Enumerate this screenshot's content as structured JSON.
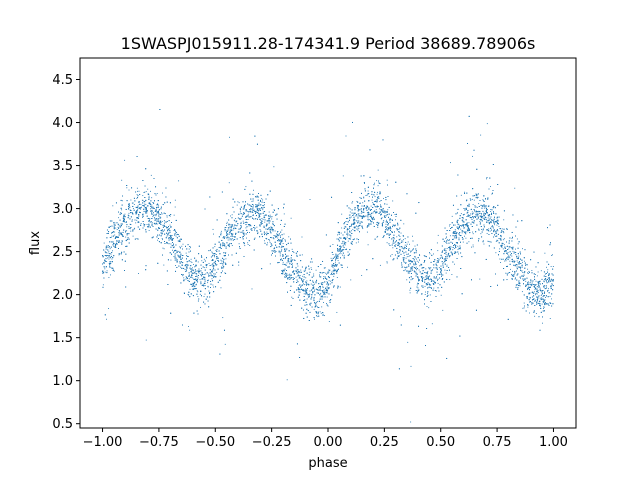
{
  "chart_data": {
    "type": "scatter",
    "title": "1SWASPJ015911.28-174341.9 Period 38689.78906s",
    "xlabel": "phase",
    "ylabel": "flux",
    "xlim": [
      -1.1,
      1.1
    ],
    "ylim": [
      0.45,
      4.75
    ],
    "x_ticks": [
      -1.0,
      -0.75,
      -0.5,
      -0.25,
      0.0,
      0.25,
      0.5,
      0.75,
      1.0
    ],
    "x_tick_labels": [
      "−1.00",
      "−0.75",
      "−0.50",
      "−0.25",
      "0.00",
      "0.25",
      "0.50",
      "0.75",
      "1.00"
    ],
    "y_ticks": [
      0.5,
      1.0,
      1.5,
      2.0,
      2.5,
      3.0,
      3.5,
      4.0,
      4.5
    ],
    "y_tick_labels": [
      "0.5",
      "1.0",
      "1.5",
      "2.0",
      "2.5",
      "3.0",
      "3.5",
      "4.0",
      "4.5"
    ],
    "grid": false,
    "legend": "none",
    "marker_color": "#1f77b4",
    "phase_range": [
      -1.0,
      1.0
    ],
    "series": [
      {
        "points": [
          [
            -1.0,
            2.35
          ],
          [
            -0.95,
            2.6
          ],
          [
            -0.9,
            2.82
          ],
          [
            -0.85,
            2.95
          ],
          [
            -0.8,
            3.0
          ],
          [
            -0.75,
            2.9
          ],
          [
            -0.7,
            2.68
          ],
          [
            -0.65,
            2.42
          ],
          [
            -0.6,
            2.22
          ],
          [
            -0.55,
            2.18
          ],
          [
            -0.5,
            2.35
          ],
          [
            -0.45,
            2.6
          ],
          [
            -0.4,
            2.82
          ],
          [
            -0.35,
            2.93
          ],
          [
            -0.3,
            2.92
          ],
          [
            -0.25,
            2.75
          ],
          [
            -0.2,
            2.5
          ],
          [
            -0.15,
            2.25
          ],
          [
            -0.1,
            2.05
          ],
          [
            -0.05,
            1.98
          ],
          [
            0.0,
            2.15
          ],
          [
            0.05,
            2.48
          ],
          [
            0.1,
            2.78
          ],
          [
            0.15,
            2.95
          ],
          [
            0.2,
            3.0
          ],
          [
            0.25,
            2.9
          ],
          [
            0.3,
            2.68
          ],
          [
            0.35,
            2.42
          ],
          [
            0.4,
            2.22
          ],
          [
            0.45,
            2.18
          ],
          [
            0.5,
            2.35
          ],
          [
            0.55,
            2.6
          ],
          [
            0.6,
            2.82
          ],
          [
            0.65,
            2.93
          ],
          [
            0.7,
            2.92
          ],
          [
            0.75,
            2.75
          ],
          [
            0.8,
            2.5
          ],
          [
            0.85,
            2.25
          ],
          [
            0.9,
            2.05
          ],
          [
            0.95,
            1.98
          ],
          [
            1.0,
            2.15
          ]
        ]
      }
    ]
  }
}
